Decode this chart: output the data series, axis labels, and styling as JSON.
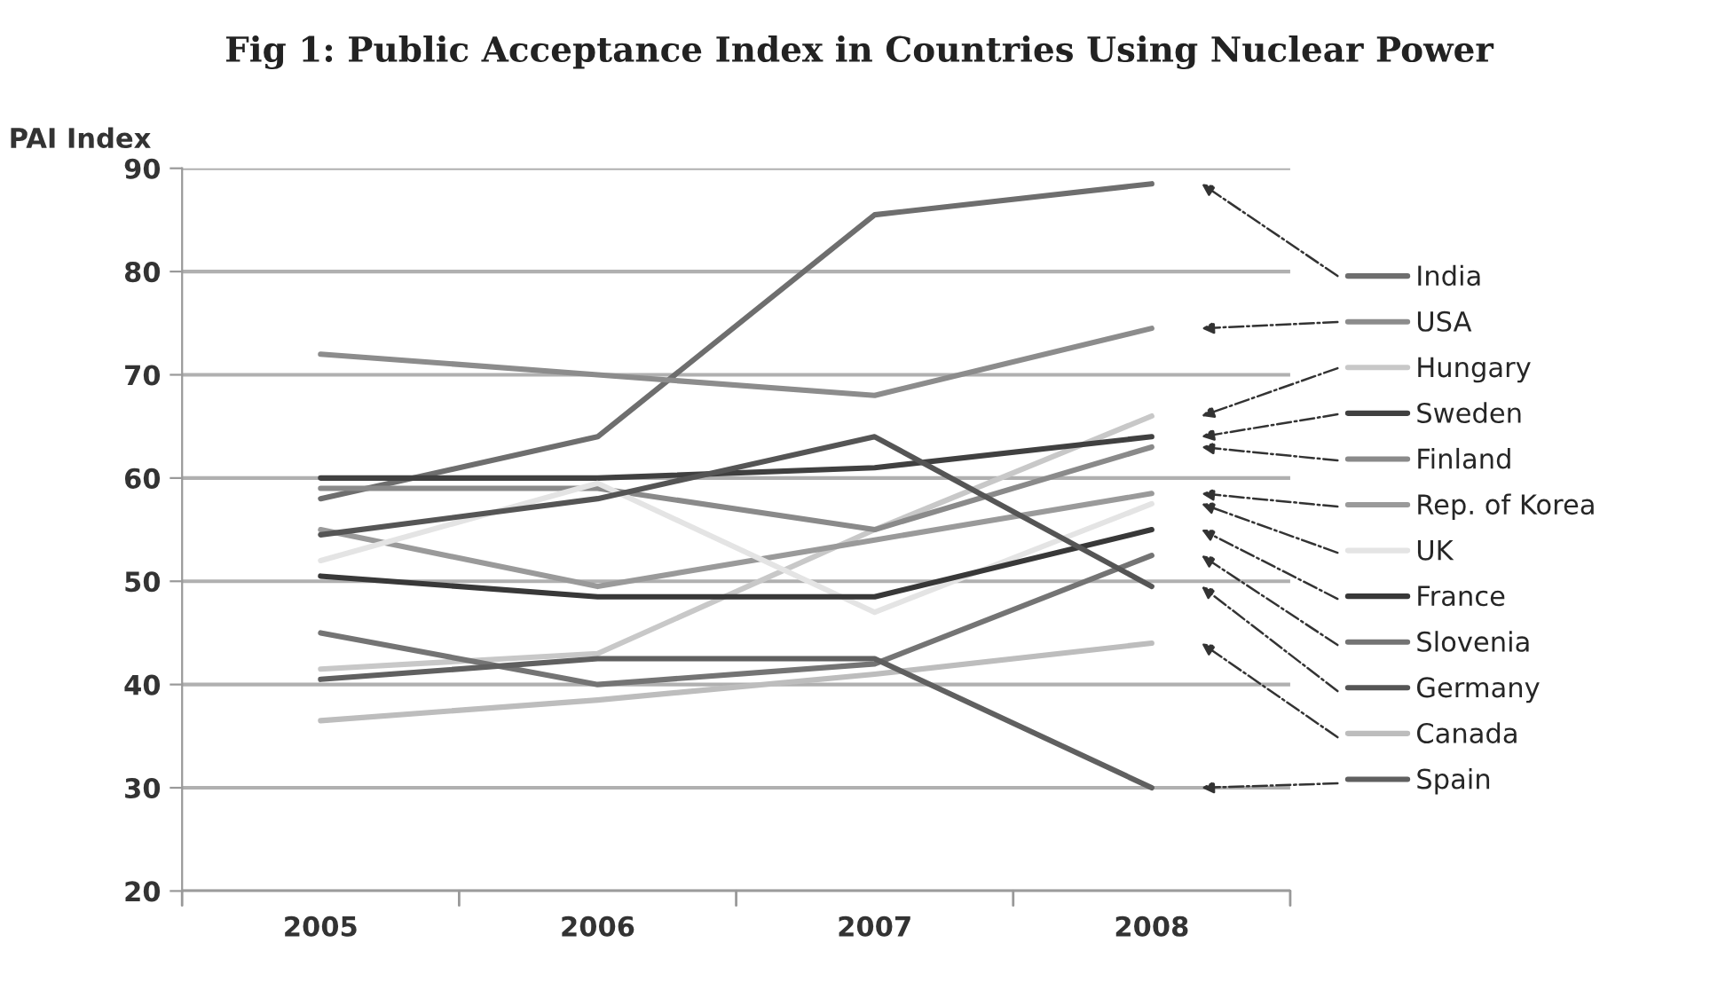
{
  "chart_data": {
    "type": "line",
    "title": "Fig 1: Public Acceptance Index in Countries Using Nuclear Power",
    "ylabel": "PAI Index",
    "categories": [
      "2005",
      "2006",
      "2007",
      "2008"
    ],
    "series": [
      {
        "name": "India",
        "color": "#6e6e6e",
        "values": [
          58,
          64,
          85.5,
          88.5
        ]
      },
      {
        "name": "USA",
        "color": "#8c8c8c",
        "values": [
          72,
          70,
          68,
          74.5
        ]
      },
      {
        "name": "Hungary",
        "color": "#c8c8c8",
        "values": [
          41.5,
          43,
          55,
          66
        ]
      },
      {
        "name": "Sweden",
        "color": "#404040",
        "values": [
          60,
          60,
          61,
          64
        ]
      },
      {
        "name": "Finland",
        "color": "#8a8a8a",
        "values": [
          59,
          59,
          55,
          63
        ]
      },
      {
        "name": "Rep. of Korea",
        "color": "#9a9a9a",
        "values": [
          55,
          49.5,
          54,
          58.5
        ]
      },
      {
        "name": "UK",
        "color": "#e4e4e4",
        "values": [
          52,
          59.5,
          47,
          57.5
        ]
      },
      {
        "name": "France",
        "color": "#383838",
        "values": [
          50.5,
          48.5,
          48.5,
          55
        ]
      },
      {
        "name": "Slovenia",
        "color": "#747474",
        "values": [
          45,
          40,
          42,
          52.5
        ]
      },
      {
        "name": "Germany",
        "color": "#555555",
        "values": [
          54.5,
          58,
          64,
          49.5
        ]
      },
      {
        "name": "Canada",
        "color": "#bdbdbd",
        "values": [
          36.5,
          38.5,
          41,
          44
        ]
      },
      {
        "name": "Spain",
        "color": "#606060",
        "values": [
          40.5,
          42.5,
          42.5,
          30
        ]
      }
    ],
    "ylim": [
      20,
      90
    ],
    "yticks": [
      20,
      30,
      40,
      50,
      60,
      70,
      80,
      90
    ],
    "grid": "y",
    "legend": "right",
    "marker": "none",
    "line_style": "solid"
  }
}
